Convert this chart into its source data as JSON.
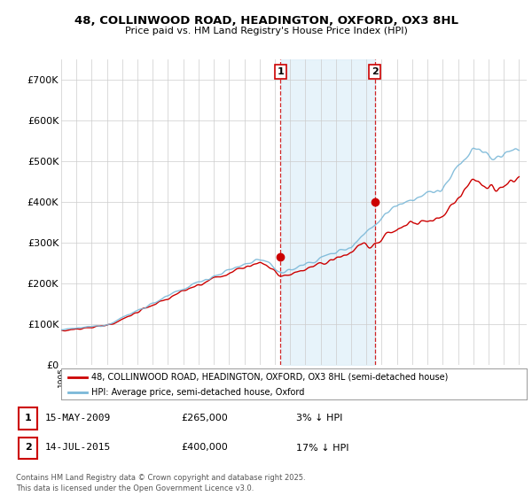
{
  "title_line1": "48, COLLINWOOD ROAD, HEADINGTON, OXFORD, OX3 8HL",
  "title_line2": "Price paid vs. HM Land Registry's House Price Index (HPI)",
  "ylim": [
    0,
    750000
  ],
  "yticks": [
    0,
    100000,
    200000,
    300000,
    400000,
    500000,
    600000,
    700000
  ],
  "ytick_labels": [
    "£0",
    "£100K",
    "£200K",
    "£300K",
    "£400K",
    "£500K",
    "£600K",
    "£700K"
  ],
  "sale1_year": 2009.375,
  "sale1_price": 265000,
  "sale2_year": 2015.542,
  "sale2_price": 400000,
  "legend_line1": "48, COLLINWOOD ROAD, HEADINGTON, OXFORD, OX3 8HL (semi-detached house)",
  "legend_line2": "HPI: Average price, semi-detached house, Oxford",
  "footnote": "Contains HM Land Registry data © Crown copyright and database right 2025.\nThis data is licensed under the Open Government Licence v3.0.",
  "line_color_hpi": "#7ab8d8",
  "line_color_price": "#cc0000",
  "shade_color": "#ddeef8",
  "vline_color": "#cc0000",
  "xmin": 1995,
  "xmax": 2025.5
}
